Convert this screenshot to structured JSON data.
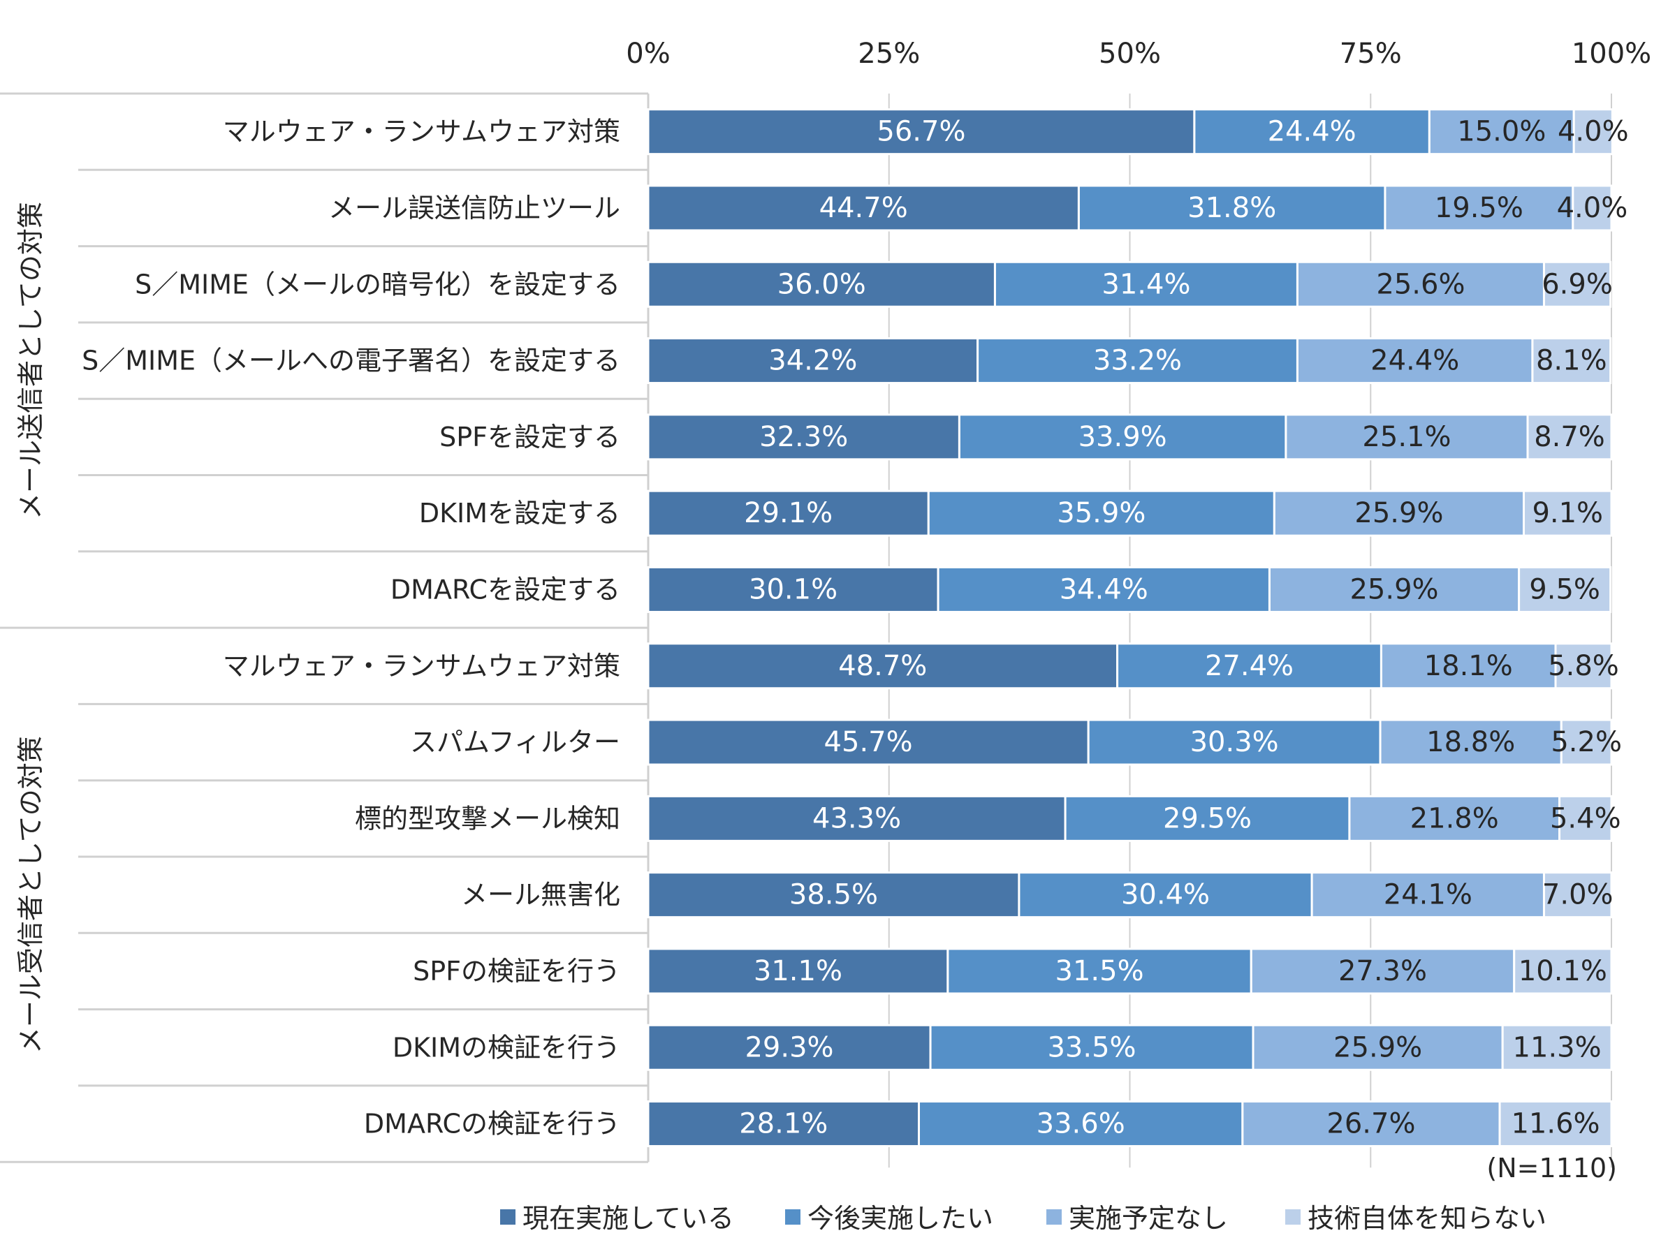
{
  "chart_data": {
    "type": "bar",
    "orientation": "horizontal",
    "stacked": "percent",
    "xlim": [
      0,
      100
    ],
    "x_ticks": [
      "0%",
      "25%",
      "50%",
      "75%",
      "100%"
    ],
    "groups": [
      {
        "label": "メール送信者としての対策",
        "rows": [
          0,
          1,
          2,
          3,
          4,
          5,
          6
        ]
      },
      {
        "label": "メール受信者としての対策",
        "rows": [
          7,
          8,
          9,
          10,
          11,
          12,
          13
        ]
      }
    ],
    "categories": [
      "マルウェア・ランサムウェア対策",
      "メール誤送信防止ツール",
      "S／MIME（メールの暗号化）を設定する",
      "S／MIME（メールへの電子署名）を設定する",
      "SPFを設定する",
      "DKIMを設定する",
      "DMARCを設定する",
      "マルウェア・ランサムウェア対策",
      "スパムフィルター",
      "標的型攻撃メール検知",
      "メール無害化",
      "SPFの検証を行う",
      "DKIMの検証を行う",
      "DMARCの検証を行う"
    ],
    "series": [
      {
        "name": "現在実施している",
        "color": "#4876a8",
        "values": [
          56.7,
          44.7,
          36.0,
          34.2,
          32.3,
          29.1,
          30.1,
          48.7,
          45.7,
          43.3,
          38.5,
          31.1,
          29.3,
          28.1
        ]
      },
      {
        "name": "今後実施したい",
        "color": "#5590c8",
        "values": [
          24.4,
          31.8,
          31.4,
          33.2,
          33.9,
          35.9,
          34.4,
          27.4,
          30.3,
          29.5,
          30.4,
          31.5,
          33.5,
          33.6
        ]
      },
      {
        "name": "実施予定なし",
        "color": "#8db3df",
        "values": [
          15.0,
          19.5,
          25.6,
          24.4,
          25.1,
          25.9,
          25.9,
          18.1,
          18.8,
          21.8,
          24.1,
          27.3,
          25.9,
          26.7
        ]
      },
      {
        "name": "技術自体を知らない",
        "color": "#bcd0ea",
        "values": [
          4.0,
          4.0,
          6.9,
          8.1,
          8.7,
          9.1,
          9.5,
          5.8,
          5.2,
          5.4,
          7.0,
          10.1,
          11.3,
          11.6
        ]
      }
    ],
    "value_format": "percent_one_decimal",
    "note": "(N=1110)",
    "grid": true,
    "legend_position": "bottom"
  }
}
